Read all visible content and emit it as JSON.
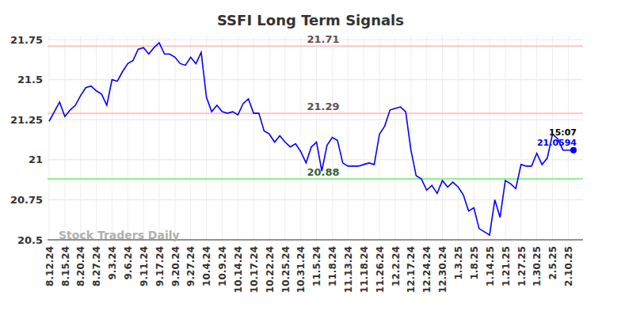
{
  "chart_data": {
    "type": "line",
    "title": "SSFI Long Term Signals",
    "watermark": "Stock Traders Daily",
    "color": "#0000ff",
    "grid": true,
    "categories": [
      "8.12.24",
      null,
      null,
      "8.15.24",
      null,
      null,
      "8.20.24",
      null,
      null,
      "8.27.24",
      null,
      null,
      "9.3.24",
      null,
      null,
      "9.6.24",
      null,
      null,
      "9.11.24",
      null,
      null,
      "9.17.24",
      null,
      null,
      "9.20.24",
      null,
      null,
      "9.27.24",
      null,
      null,
      "10.4.24",
      null,
      null,
      "10.9.24",
      null,
      null,
      "10.14.24",
      null,
      null,
      "10.17.24",
      null,
      null,
      "10.22.24",
      null,
      null,
      "10.25.24",
      null,
      null,
      "10.31.24",
      null,
      null,
      "11.5.24",
      null,
      null,
      "11.8.24",
      null,
      null,
      "11.13.24",
      null,
      null,
      "11.18.24",
      null,
      null,
      "11.26.24",
      null,
      null,
      "12.2.24",
      null,
      null,
      "12.17.24",
      null,
      null,
      "12.24.24",
      null,
      null,
      "12.30.24",
      null,
      null,
      "1.3.25",
      null,
      null,
      "1.8.25",
      null,
      null,
      "1.14.25",
      null,
      null,
      "1.21.25",
      null,
      null,
      "1.27.25",
      null,
      null,
      "1.30.25",
      null,
      null,
      "2.5.25",
      null,
      null,
      "2.10.25",
      null
    ],
    "values": [
      21.24,
      21.3,
      21.36,
      21.27,
      21.31,
      21.34,
      21.4,
      21.45,
      21.46,
      21.43,
      21.41,
      21.34,
      21.5,
      21.49,
      21.55,
      21.6,
      21.62,
      21.69,
      21.7,
      21.66,
      21.7,
      21.73,
      21.66,
      21.66,
      21.64,
      21.6,
      21.59,
      21.64,
      21.6,
      21.67,
      21.39,
      21.3,
      21.34,
      21.3,
      21.29,
      21.3,
      21.28,
      21.35,
      21.38,
      21.29,
      21.29,
      21.18,
      21.16,
      21.11,
      21.15,
      21.11,
      21.08,
      21.1,
      21.05,
      20.98,
      21.08,
      21.11,
      20.93,
      21.09,
      21.14,
      21.12,
      20.98,
      20.96,
      20.96,
      20.96,
      20.97,
      20.98,
      20.97,
      21.16,
      21.21,
      21.31,
      21.32,
      21.33,
      21.3,
      21.06,
      20.9,
      20.88,
      20.81,
      20.84,
      20.79,
      20.87,
      20.83,
      20.86,
      20.83,
      20.78,
      20.68,
      20.7,
      20.57,
      20.55,
      20.53,
      20.75,
      20.64,
      20.87,
      20.85,
      20.82,
      20.97,
      20.96,
      20.96,
      21.04,
      20.97,
      21.01,
      21.16,
      21.13,
      21.06,
      21.06,
      21.0594
    ],
    "last_time": "15:07",
    "levels": [
      {
        "value": 21.71,
        "color": "#ffc4c4"
      },
      {
        "value": 21.29,
        "color": "#ffc4c4"
      },
      {
        "value": 20.88,
        "color": "#90ee90"
      }
    ],
    "ylim": [
      20.5,
      21.77
    ],
    "yticks": [
      20.5,
      20.75,
      21,
      21.25,
      21.5,
      21.75
    ]
  }
}
